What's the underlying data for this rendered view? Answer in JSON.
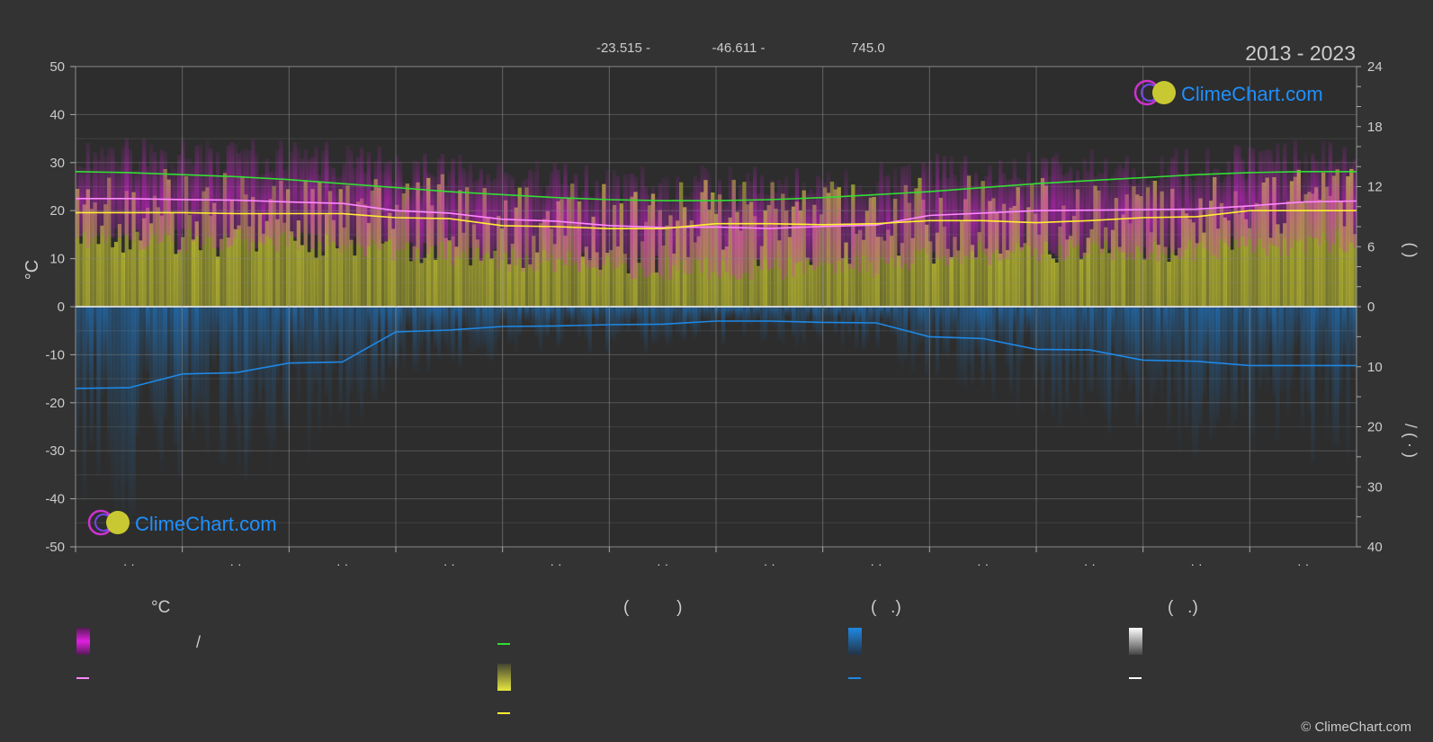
{
  "header": {
    "coords": [
      "-23.515 -",
      "-46.611 -",
      "745.0"
    ],
    "years": "2013 - 2023"
  },
  "brand": {
    "name": "ClimeChart.com"
  },
  "legend": {
    "temp_heading": "°C",
    "daylight_heading": "(          )",
    "rain_heading": "(   .)",
    "snow_heading": "(   .)",
    "slash": "/"
  },
  "copyright": "© ClimeChart.com",
  "colors": {
    "background": "#333333",
    "temp_max_band": "#e020e0",
    "daylight_line": "#33dd33",
    "sunshine_band": "#c8c832",
    "sunshine_line": "#ffee33",
    "avg_temp_line": "#ff88ff",
    "rain_band": "#1e78c8",
    "rain_line": "#1e88e5",
    "snow_band": "#ffffff",
    "brand": "#1e90ff"
  },
  "chart_data": {
    "type": "area",
    "title": "",
    "left_axis": {
      "label": "°C",
      "min": -50,
      "max": 50,
      "ticks": [
        50,
        40,
        30,
        20,
        10,
        0,
        -10,
        -20,
        -30,
        -40,
        -50
      ]
    },
    "right_axis_top": {
      "label": "(   )",
      "min": 0,
      "max": 24,
      "ticks": [
        24,
        18,
        12,
        6,
        0
      ]
    },
    "right_axis_bottom": {
      "label": "/   (   ·   )",
      "min": 0,
      "max": 40,
      "ticks": [
        0,
        10,
        20,
        30,
        40
      ]
    },
    "x_tick_labels": [
      "· ·",
      "· ·",
      "· ·",
      "· ·",
      "· ·",
      "· ·",
      "· ·",
      "· ·",
      "· ·",
      "· ·",
      "· ·",
      "· ·"
    ],
    "month_count": 12,
    "grid": true,
    "series": [
      {
        "key": "daylight",
        "axis": "right_top",
        "x": [
          0,
          0.5,
          1,
          1.5,
          2,
          2.5,
          3,
          3.5,
          4,
          4.5,
          5,
          5.5,
          6,
          6.5,
          7,
          7.5,
          8,
          8.5,
          9,
          9.5,
          10,
          10.5,
          11,
          11.5,
          12
        ],
        "values": [
          13.5,
          13.4,
          13.2,
          13.0,
          12.7,
          12.3,
          11.9,
          11.5,
          11.2,
          10.9,
          10.7,
          10.6,
          10.6,
          10.7,
          10.9,
          11.2,
          11.5,
          11.9,
          12.3,
          12.6,
          12.9,
          13.2,
          13.4,
          13.5,
          13.5
        ]
      },
      {
        "key": "avg_max_temp",
        "axis": "left",
        "x": [
          0,
          0.5,
          1,
          1.5,
          2,
          2.5,
          3,
          3.5,
          4,
          4.5,
          5,
          5.5,
          6,
          6.5,
          7,
          7.5,
          8,
          8.5,
          9,
          9.5,
          10,
          10.5,
          11,
          11.5,
          12
        ],
        "values": [
          22.5,
          22.5,
          22.3,
          22.2,
          21.8,
          21.5,
          20.0,
          19.5,
          18.2,
          17.8,
          16.9,
          16.5,
          16.6,
          16.3,
          16.7,
          17.0,
          19.0,
          19.5,
          20.0,
          20.1,
          20.2,
          20.3,
          21.0,
          21.8,
          22.0
        ]
      },
      {
        "key": "sunshine",
        "axis": "right_top",
        "x": [
          0,
          0.5,
          1,
          1.5,
          2,
          2.5,
          3,
          3.5,
          4,
          4.5,
          5,
          5.5,
          6,
          6.5,
          7,
          7.5,
          8,
          8.5,
          9,
          9.5,
          10,
          10.5,
          11,
          11.5,
          12
        ],
        "values": [
          9.4,
          9.4,
          9.4,
          9.3,
          9.3,
          9.3,
          8.9,
          8.8,
          8.1,
          8.0,
          7.8,
          7.8,
          8.3,
          8.3,
          8.2,
          8.3,
          8.6,
          8.6,
          8.4,
          8.6,
          8.9,
          9.0,
          9.6,
          9.6,
          9.6
        ]
      },
      {
        "key": "rainfall",
        "axis": "right_bottom",
        "x": [
          0,
          0.5,
          1,
          1.5,
          2,
          2.5,
          3,
          3.5,
          4,
          4.5,
          5,
          5.5,
          6,
          6.5,
          7,
          7.5,
          8,
          8.5,
          9,
          9.5,
          10,
          10.5,
          11,
          11.5,
          12
        ],
        "values": [
          13.6,
          13.5,
          11.2,
          11.0,
          9.4,
          9.2,
          4.2,
          3.9,
          3.3,
          3.2,
          3.0,
          2.9,
          2.4,
          2.4,
          2.6,
          2.7,
          5.0,
          5.3,
          7.1,
          7.2,
          8.9,
          9.1,
          9.8,
          9.8,
          9.8
        ]
      }
    ]
  }
}
